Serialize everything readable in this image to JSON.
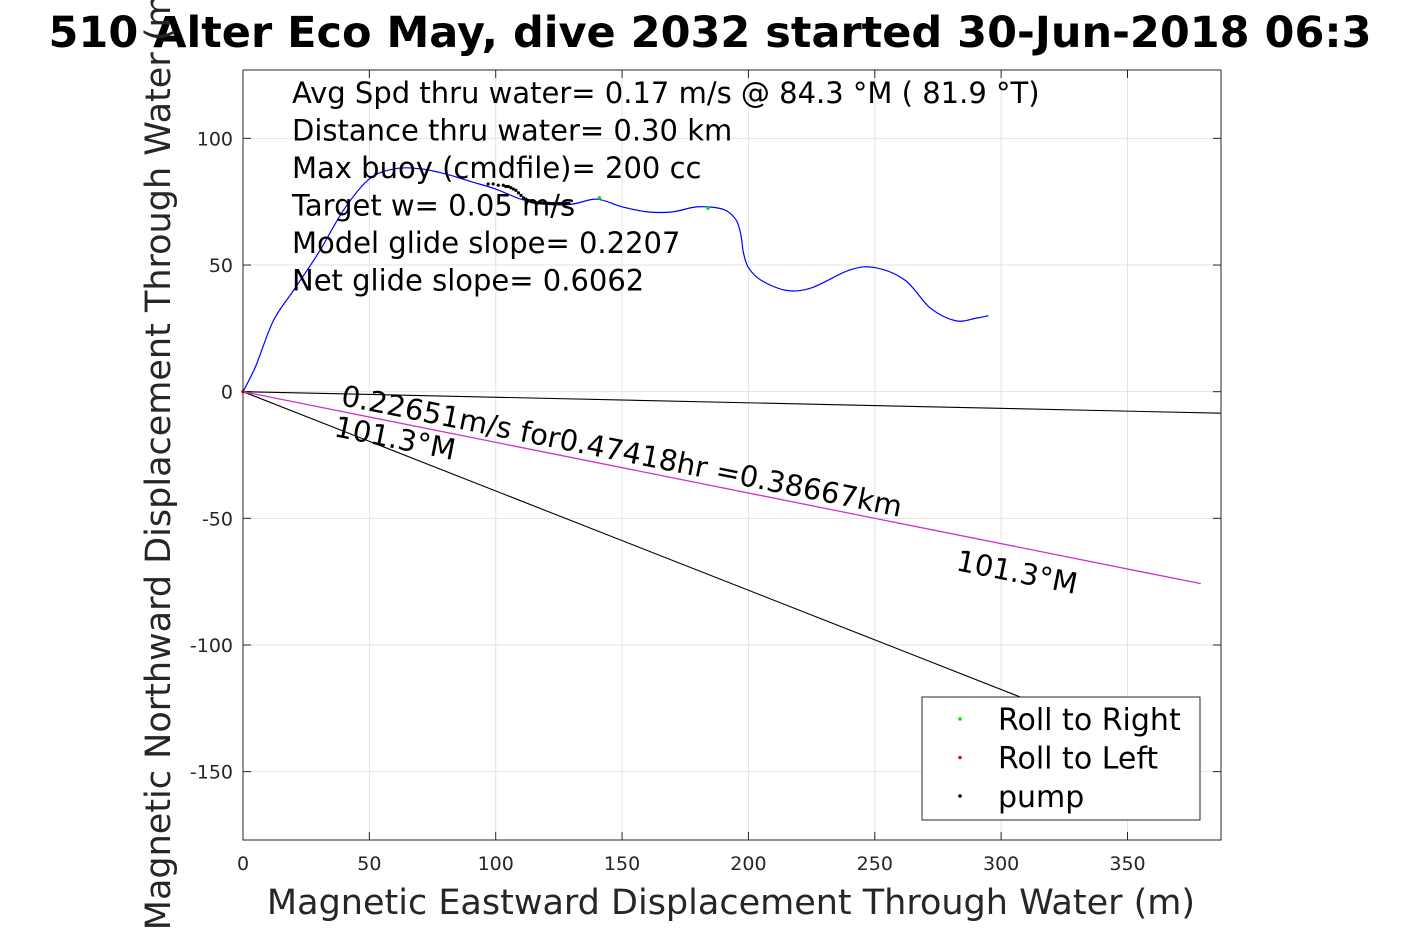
{
  "chart_data": {
    "type": "line",
    "title": "510 Alter Eco May, dive 2032 started 30-Jun-2018 06:3",
    "xlabel": "Magnetic Eastward Displacement Through Water (m)",
    "ylabel": "Magnetic Northward Displacement Through Water (m)",
    "xlim": [
      0,
      387
    ],
    "ylim": [
      -177,
      127
    ],
    "xticks": [
      0,
      50,
      100,
      150,
      200,
      250,
      300,
      350
    ],
    "yticks": [
      100,
      50,
      0,
      -50,
      -100,
      -150
    ],
    "grid": true,
    "legend_position": "bottom-right",
    "stats": [
      "Avg Spd thru water=  0.17 m/s @  84.3 °M ( 81.9 °T)",
      "Distance thru water=  0.30 km",
      "Max buoy (cmdfile)= 200 cc",
      "Target w= 0.05 m/s",
      "Model glide slope= 0.2207",
      "Net glide slope= 0.6062"
    ],
    "annotations": {
      "current_label": "0.22651m/s for0.47418hr =0.38667km",
      "heading_label_1": "101.3°M",
      "heading_label_2": "101.3°M"
    },
    "track": {
      "color": "#0000ff",
      "x": [
        0,
        5,
        12,
        20,
        30,
        40,
        50,
        60,
        70,
        80,
        90,
        100,
        110,
        120,
        130,
        140,
        150,
        160,
        170,
        180,
        190,
        195,
        197,
        198,
        200,
        205,
        215,
        225,
        240,
        250,
        262,
        272,
        282,
        290,
        295
      ],
      "y": [
        0,
        10,
        28,
        40,
        55,
        72,
        84,
        88,
        88,
        86,
        83,
        80,
        76,
        74,
        74,
        76,
        73,
        71,
        71,
        73,
        72,
        68,
        62,
        55,
        49,
        44,
        40,
        41,
        48,
        49,
        44,
        33,
        28,
        29,
        30
      ]
    },
    "lines": [
      {
        "name": "",
        "color": "#000000",
        "x": [
          0,
          387
        ],
        "y": [
          0,
          -8.5
        ]
      },
      {
        "name": "",
        "color": "#000000",
        "x": [
          0,
          310
        ],
        "y": [
          0,
          -121.5
        ]
      },
      {
        "name": "",
        "color": "#cc33cc",
        "x": [
          0,
          379
        ],
        "y": [
          0,
          -75.8
        ]
      }
    ],
    "series": [
      {
        "name": "Roll to Right",
        "color": "#00dd00",
        "x": [
          184,
          141
        ],
        "y": [
          72.5,
          76.5
        ]
      },
      {
        "name": "Roll to Left",
        "color": "#ff0000",
        "x": [
          0
        ],
        "y": [
          0
        ]
      },
      {
        "name": "pump",
        "color": "#000000",
        "x": [
          97,
          99,
          101,
          103,
          104,
          105,
          106,
          107,
          108,
          109,
          110,
          111,
          112,
          113,
          114,
          115,
          116,
          117,
          118,
          119,
          120,
          121,
          122,
          123,
          124,
          125,
          126,
          127,
          128,
          129
        ],
        "y": [
          82,
          82,
          81.5,
          81.5,
          81,
          81,
          80.5,
          80,
          79.5,
          78.5,
          77.5,
          76.5,
          76,
          75.5,
          75,
          74.8,
          74.6,
          74.5,
          74.5,
          74.4,
          74.4,
          74.4,
          74.3,
          74.3,
          74.3,
          74.3,
          74.3,
          74.3,
          74.4,
          74.4
        ]
      }
    ]
  }
}
